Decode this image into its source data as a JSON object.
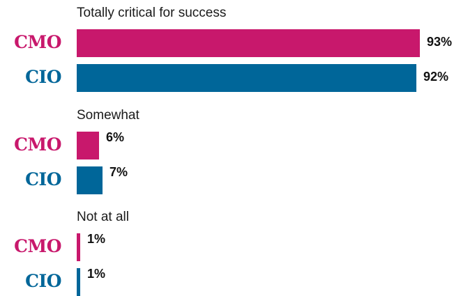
{
  "colors": {
    "CMO": "#c8186c",
    "CIO": "#006699"
  },
  "chart_data": {
    "type": "bar",
    "orientation": "horizontal",
    "grid": false,
    "legend": "none",
    "value_suffix": "%",
    "xlim": [
      0,
      100
    ],
    "groups": [
      {
        "title": "Totally critical for success",
        "rows": [
          {
            "label": "CMO",
            "value": 93,
            "value_label": "93%"
          },
          {
            "label": "CIO",
            "value": 92,
            "value_label": "92%"
          }
        ]
      },
      {
        "title": "Somewhat",
        "rows": [
          {
            "label": "CMO",
            "value": 6,
            "value_label": "6%"
          },
          {
            "label": "CIO",
            "value": 7,
            "value_label": "7%"
          }
        ]
      },
      {
        "title": "Not at all",
        "rows": [
          {
            "label": "CMO",
            "value": 1,
            "value_label": "1%"
          },
          {
            "label": "CIO",
            "value": 1,
            "value_label": "1%"
          }
        ]
      }
    ]
  }
}
